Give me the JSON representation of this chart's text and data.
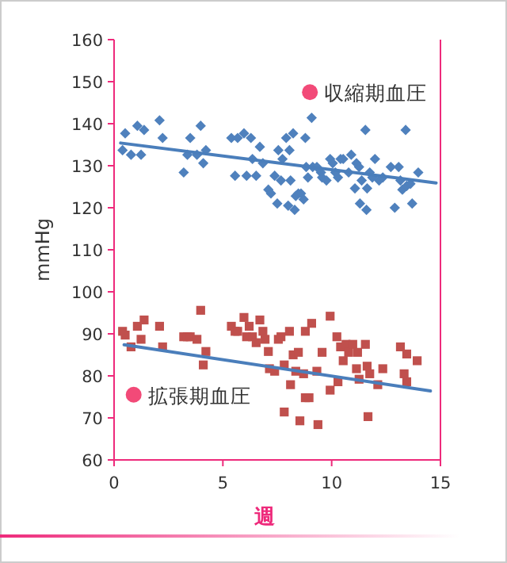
{
  "chart_data": {
    "type": "scatter",
    "xlabel": "週",
    "ylabel": "mmHg",
    "xlim": [
      0,
      15
    ],
    "xticks": [
      0,
      5,
      10,
      15
    ],
    "ylim": [
      60,
      160
    ],
    "yticks": [
      60,
      70,
      80,
      90,
      100,
      110,
      120,
      130,
      140,
      150,
      160
    ],
    "series": [
      {
        "name": "収縮期血圧",
        "color": "#4f81bd",
        "marker": "diamond",
        "x": [
          0.39,
          0.51,
          0.78,
          1.07,
          1.24,
          1.38,
          2.09,
          2.23,
          3.2,
          3.5,
          3.37,
          3.81,
          3.98,
          4.1,
          4.22,
          5.39,
          5.56,
          5.68,
          5.97,
          6.09,
          6.29,
          6.36,
          6.53,
          6.7,
          6.84,
          7.09,
          7.21,
          7.38,
          7.55,
          7.67,
          7.74,
          7.91,
          8.06,
          8.11,
          8.23,
          8.35,
          8.47,
          8.59,
          8.71,
          8.79,
          8.83,
          8.91,
          9.08,
          9.13,
          9.32,
          9.51,
          9.56,
          9.76,
          9.93,
          10.05,
          10.17,
          10.29,
          10.41,
          10.53,
          10.78,
          10.9,
          11.07,
          11.14,
          11.26,
          11.38,
          11.55,
          11.63,
          11.75,
          11.87,
          11.99,
          12.18,
          12.35,
          12.72,
          13.08,
          13.16,
          13.25,
          13.4,
          13.45,
          13.62,
          13.98,
          7.5,
          8.0,
          8.3,
          11.3,
          11.6,
          12.9,
          13.7
        ],
        "values": [
          133.7,
          137.7,
          132.6,
          139.5,
          132.6,
          138.5,
          140.8,
          136.6,
          128.4,
          136.6,
          132.6,
          132.6,
          139.5,
          130.6,
          133.7,
          136.6,
          127.6,
          136.6,
          137.7,
          127.6,
          136.6,
          131.6,
          127.6,
          134.5,
          130.6,
          124.3,
          123.4,
          127.6,
          133.7,
          126.5,
          131.6,
          136.6,
          133.7,
          126.5,
          137.7,
          122.8,
          123.4,
          123.4,
          122,
          136.6,
          129.7,
          127.2,
          141.4,
          129.7,
          129.7,
          128.4,
          127.2,
          126.5,
          131.6,
          130.6,
          128.4,
          127.2,
          131.6,
          131.6,
          128.4,
          132.6,
          124.6,
          130.6,
          129.7,
          126.5,
          138.5,
          124.6,
          128.4,
          127.2,
          131.6,
          126.5,
          127.2,
          129.7,
          129.7,
          126.5,
          124.3,
          138.5,
          125.2,
          125.7,
          128.4,
          121,
          120.5,
          119.5,
          121,
          119.5,
          120,
          121
        ]
      },
      {
        "name": "拡張期血圧",
        "color": "#c0504d",
        "marker": "square",
        "x": [
          0.39,
          0.51,
          0.78,
          1.07,
          1.24,
          1.38,
          2.09,
          2.23,
          3.2,
          3.37,
          3.5,
          3.81,
          3.98,
          4.22,
          5.39,
          5.56,
          5.68,
          5.97,
          6.09,
          6.21,
          6.36,
          6.53,
          6.7,
          6.84,
          6.94,
          7.09,
          7.55,
          7.67,
          8.06,
          8.23,
          8.47,
          8.79,
          9.08,
          9.56,
          9.93,
          10.24,
          10.41,
          10.66,
          10.78,
          10.97,
          11.19,
          11.55,
          13.16,
          13.45,
          13.93,
          4.1,
          7.14,
          7.38,
          7.82,
          8.11,
          8.35,
          8.71,
          8.79,
          8.96,
          9.32,
          9.93,
          10.29,
          10.53,
          11.14,
          11.26,
          11.63,
          11.75,
          12.12,
          12.35,
          13.33,
          13.45,
          7.82,
          8.54,
          9.37,
          11.67
        ],
        "values": [
          90.6,
          89.7,
          86.9,
          91.8,
          88.7,
          93.3,
          91.8,
          86.9,
          89.3,
          89.3,
          89.3,
          88.7,
          95.6,
          85.8,
          91.8,
          90.6,
          90.6,
          93.9,
          89.3,
          91.8,
          89.3,
          87.9,
          93.3,
          90.6,
          88.7,
          85.8,
          88.7,
          89.3,
          90.6,
          85,
          85.6,
          90.6,
          92.5,
          85.6,
          94.2,
          89.3,
          86.9,
          87.5,
          85.6,
          87.5,
          85.6,
          87.5,
          86.9,
          85.2,
          83.6,
          82.6,
          81.7,
          81.1,
          82.6,
          77.9,
          81.1,
          80.5,
          74.8,
          74.8,
          81.1,
          76.6,
          78.6,
          83.6,
          81.7,
          79.2,
          82.3,
          80.5,
          77.9,
          81.7,
          80.5,
          78.6,
          71.4,
          69.3,
          68.4,
          70.3
        ]
      },
      {
        "type": "line",
        "color": "#4a7ebb",
        "marker": "none",
        "x": [
          0.3,
          14.8
        ],
        "values": [
          135.4,
          125.9
        ]
      },
      {
        "type": "line",
        "color": "#4a7ebb",
        "marker": "none",
        "x": [
          0.46,
          14.54
        ],
        "values": [
          87.4,
          76.4
        ]
      }
    ]
  }
}
